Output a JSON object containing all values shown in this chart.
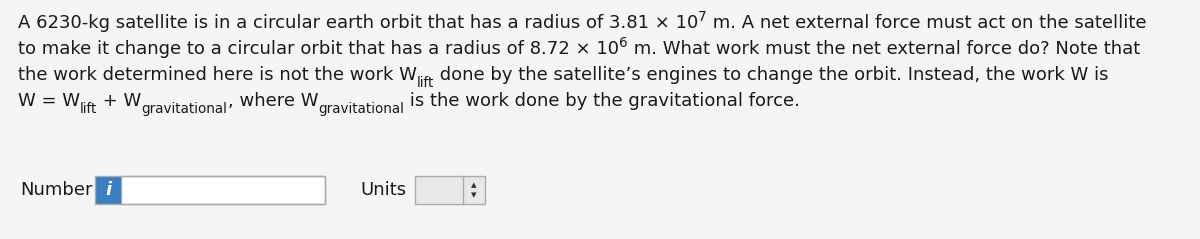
{
  "bg_color": "#f5f5f5",
  "text_color": "#1a1a1a",
  "number_label": "Number",
  "units_label": "Units",
  "input_box_color": "#ffffff",
  "input_box_border": "#aaaaaa",
  "info_button_color": "#3a7fc1",
  "info_button_text": "i",
  "font_size": 13.0
}
